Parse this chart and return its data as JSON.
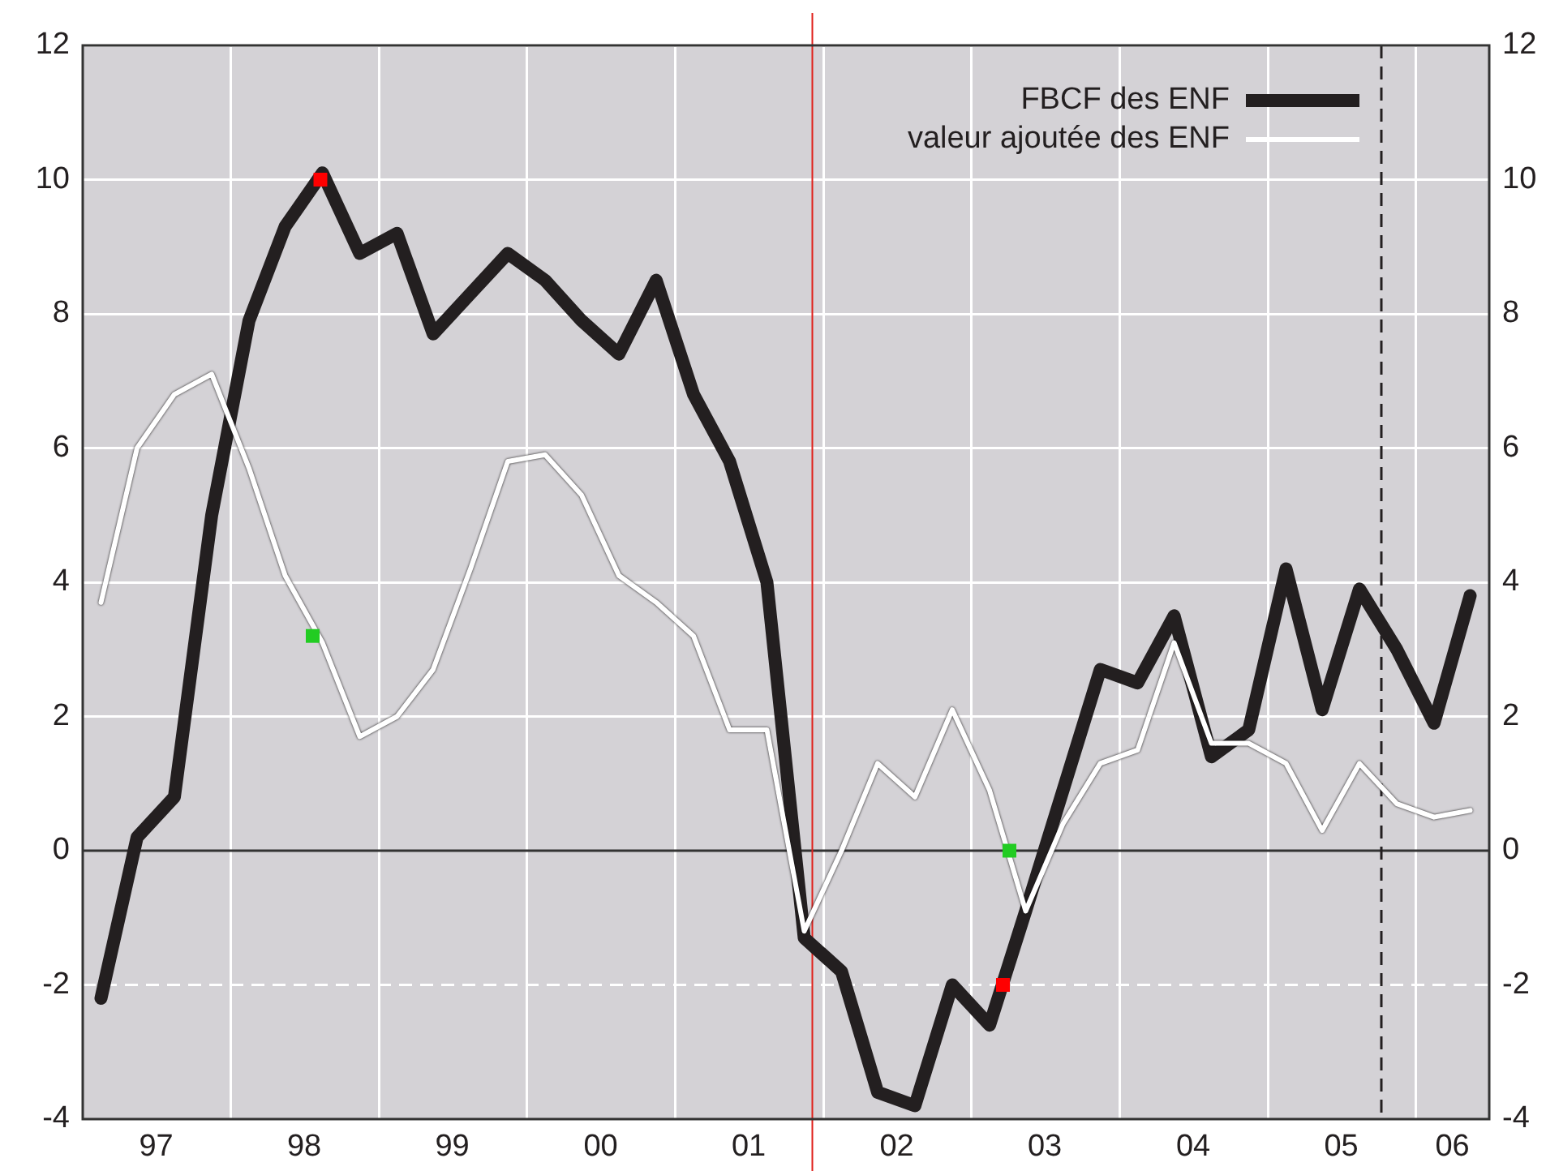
{
  "chart_data": {
    "type": "line",
    "xlim": [
      "1997-01-01",
      "2006-07-01"
    ],
    "xticks": [
      {
        "value": "1997-07-01",
        "label": "97"
      },
      {
        "value": "1998-01-01",
        "label": null
      },
      {
        "value": "1998-07-01",
        "label": "98"
      },
      {
        "value": "1999-01-01",
        "label": null
      },
      {
        "value": "1999-07-01",
        "label": "99"
      },
      {
        "value": "2000-01-01",
        "label": null
      },
      {
        "value": "2000-07-01",
        "label": "00"
      },
      {
        "value": "2001-01-01",
        "label": null
      },
      {
        "value": "2001-07-01",
        "label": "01"
      },
      {
        "value": "2002-01-01",
        "label": null
      },
      {
        "value": "2002-07-01",
        "label": "02"
      },
      {
        "value": "2003-01-01",
        "label": null
      },
      {
        "value": "2003-07-01",
        "label": "03"
      },
      {
        "value": "2004-01-01",
        "label": null
      },
      {
        "value": "2004-07-01",
        "label": "04"
      },
      {
        "value": "2005-01-01",
        "label": null
      },
      {
        "value": "2005-07-01",
        "label": "05"
      },
      {
        "value": "2006-01-01",
        "label": null
      },
      {
        "value": "2006-04-01",
        "label": "06"
      }
    ],
    "ylim": [
      -4,
      12
    ],
    "yticks": [
      -4,
      -2,
      0,
      2,
      4,
      6,
      8,
      10,
      12
    ],
    "y2lim": [
      -4,
      12
    ],
    "y2ticks": [
      -4,
      -2,
      0,
      2,
      4,
      6,
      8,
      10,
      12
    ],
    "grid": true,
    "legend": "top right",
    "x": [
      "1997-02-15",
      "1997-05-15",
      "1997-08-15",
      "1997-11-15",
      "1998-02-15",
      "1998-05-15",
      "1998-08-15",
      "1998-11-15",
      "1999-02-15",
      "1999-05-15",
      "1999-08-15",
      "1999-11-15",
      "2000-02-15",
      "2000-05-15",
      "2000-08-15",
      "2000-11-15",
      "2001-02-15",
      "2001-05-15",
      "2001-08-15",
      "2001-11-15",
      "2002-02-15",
      "2002-05-15",
      "2002-08-15",
      "2002-11-15",
      "2003-02-15",
      "2003-05-15",
      "2003-08-15",
      "2003-11-15",
      "2004-02-15",
      "2004-05-15",
      "2004-08-15",
      "2004-11-15",
      "2005-02-15",
      "2005-05-15",
      "2005-08-15",
      "2005-11-15",
      "2006-02-15",
      "2006-05-15"
    ],
    "series": [
      {
        "name": "FBCF des ENF",
        "color": "#231f20",
        "values": [
          -2.2,
          0.2,
          0.8,
          5.0,
          7.9,
          9.3,
          10.1,
          8.9,
          9.2,
          7.7,
          8.3,
          8.9,
          8.5,
          7.9,
          7.4,
          8.5,
          6.8,
          5.8,
          4.0,
          -1.3,
          -1.8,
          -3.6,
          -3.8,
          -2.0,
          -2.6,
          -0.9,
          0.9,
          2.7,
          2.5,
          3.5,
          1.4,
          1.8,
          4.2,
          2.1,
          3.9,
          3.0,
          1.9,
          3.8
        ]
      },
      {
        "name": "valeur ajoutée des ENF",
        "color": "#ffffff",
        "values": [
          3.7,
          6.0,
          6.8,
          7.1,
          5.7,
          4.1,
          3.1,
          1.7,
          2.0,
          2.7,
          4.2,
          5.8,
          5.9,
          5.3,
          4.1,
          3.7,
          3.2,
          1.8,
          1.8,
          -1.2,
          0.0,
          1.3,
          0.8,
          2.1,
          0.9,
          -0.9,
          0.4,
          1.3,
          1.5,
          3.1,
          1.6,
          1.6,
          1.3,
          0.3,
          1.3,
          0.7,
          0.5,
          0.6
        ]
      },
      {
        "type": "scatter",
        "marker": "square",
        "color": "#ff0000",
        "x": [
          "1998-08-10",
          "2003-03-20"
        ],
        "values": [
          10.0,
          -2.0
        ]
      },
      {
        "type": "scatter",
        "marker": "square",
        "color": "#22cc22",
        "x": [
          "1998-07-22",
          "2003-04-05"
        ],
        "values": [
          3.2,
          0.0
        ]
      }
    ],
    "ref_lines": [
      {
        "axis": "y",
        "value": 0,
        "color": "#333333",
        "line_style": "solid"
      },
      {
        "axis": "y",
        "value": -2,
        "color": "#ffffff",
        "line_style": "dashed"
      },
      {
        "axis": "x",
        "value": "2001-12-05",
        "color": "#e0201b",
        "line_style": "solid"
      },
      {
        "axis": "x",
        "value": "2005-10-08",
        "color": "#231f20",
        "line_style": "dashed"
      }
    ]
  }
}
